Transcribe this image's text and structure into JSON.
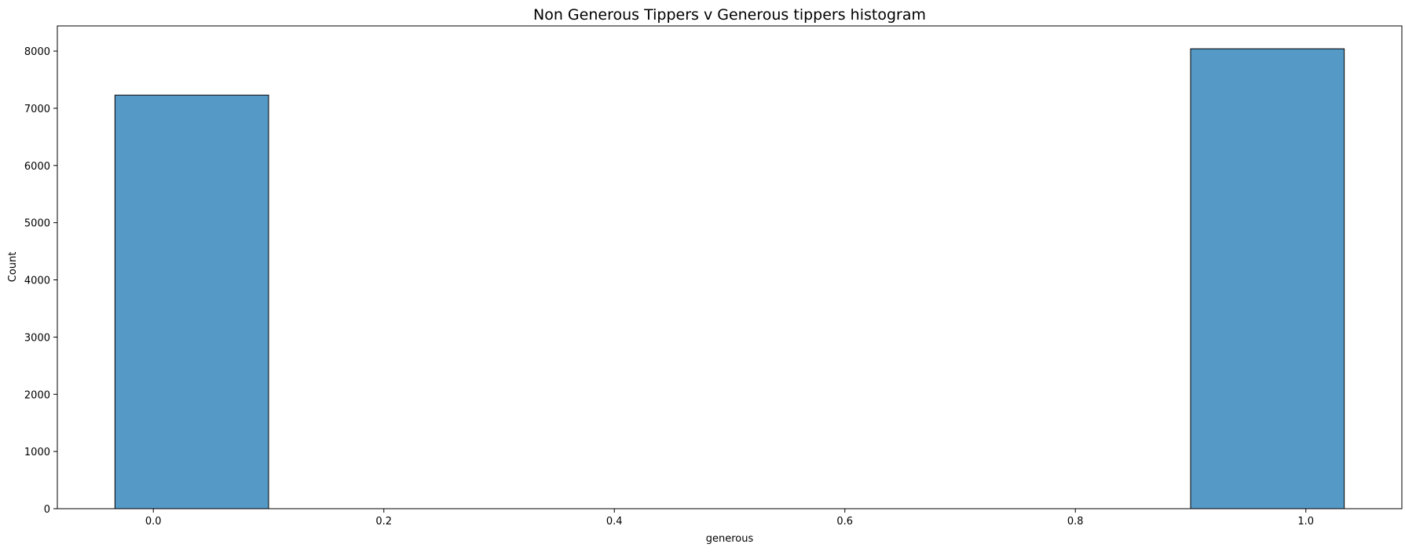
{
  "chart_data": {
    "type": "bar",
    "title": "Non Generous Tippers v Generous tippers histogram",
    "xlabel": "generous",
    "ylabel": "Count",
    "xlim": [
      -0.0833,
      1.0833
    ],
    "ylim": [
      0,
      8440
    ],
    "x_ticks": [
      0.0,
      0.2,
      0.4,
      0.6,
      0.8,
      1.0
    ],
    "x_tick_labels": [
      "0.0",
      "0.2",
      "0.4",
      "0.6",
      "0.8",
      "1.0"
    ],
    "y_ticks": [
      0,
      1000,
      2000,
      3000,
      4000,
      5000,
      6000,
      7000,
      8000
    ],
    "y_tick_labels": [
      "0",
      "1000",
      "2000",
      "3000",
      "4000",
      "5000",
      "6000",
      "7000",
      "8000"
    ],
    "bins": [
      {
        "x_start": -0.0333,
        "x_end": 0.1,
        "count": 7230
      },
      {
        "x_start": 0.9,
        "x_end": 1.0333,
        "count": 8040
      }
    ],
    "bar_color": "#5599c7",
    "edge_color": "#000000",
    "grid": false,
    "legend": "none"
  }
}
